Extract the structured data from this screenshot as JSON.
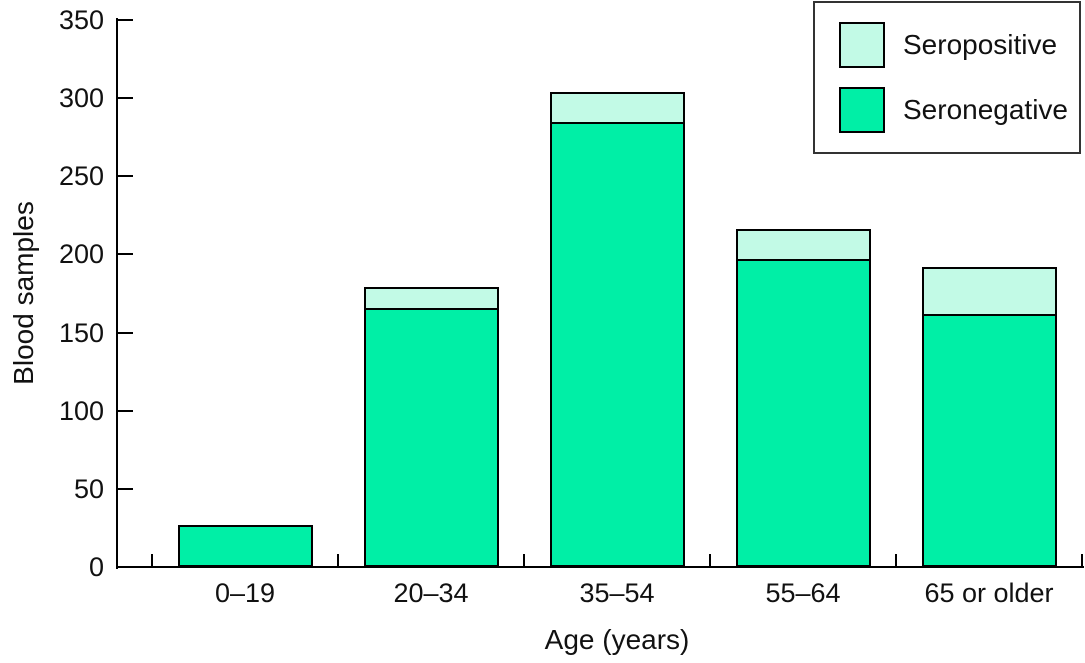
{
  "chart_data": {
    "type": "bar",
    "stacked": true,
    "title": "",
    "xlabel": "Age (years)",
    "ylabel": "Blood samples",
    "categories": [
      "0–19",
      "20–34",
      "35–54",
      "55–64",
      "65 or older"
    ],
    "series": [
      {
        "name": "Seropositive",
        "color": "#C2FAE6",
        "values": [
          0,
          13,
          19,
          19,
          30
        ]
      },
      {
        "name": "Seronegative",
        "color": "#00EFA6",
        "values": [
          27,
          166,
          285,
          197,
          162
        ]
      }
    ],
    "totals": [
      27,
      179,
      304,
      216,
      192
    ],
    "ylim": [
      0,
      350
    ],
    "yticks": [
      0,
      50,
      100,
      150,
      200,
      250,
      300,
      350
    ],
    "grid": false,
    "legend_position": "top-right",
    "bar_edge_color": "#000000",
    "axis_color": "#000000",
    "text_color": "#111111",
    "background": "#FFFFFF"
  }
}
